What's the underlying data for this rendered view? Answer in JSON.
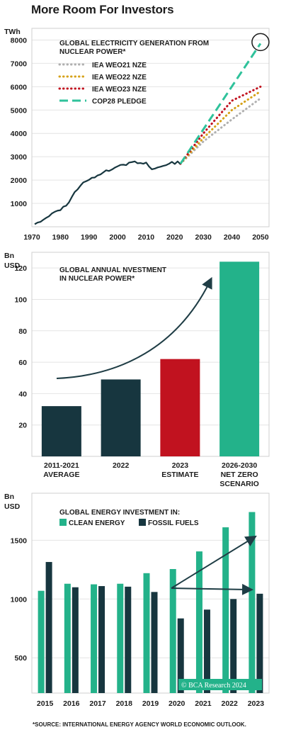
{
  "page_title": "More Room For Investors",
  "source_note": "*SOURCE: INTERNATIONAL ENERGY AGENCY WORLD ECONOMIC OUTLOOK.",
  "watermark": "© BCA Research 2024",
  "colors": {
    "navy": "#17363f",
    "red": "#c1121f",
    "teal": "#23b28a",
    "gray_dots": "#b0b0b0",
    "gold_dots": "#d6a21a",
    "red_dots": "#c1121f",
    "green_dash": "#2fc29b",
    "arrow": "#1f3d45"
  },
  "chart_data": [
    {
      "type": "line",
      "title": [
        "GLOBAL ELECTRICITY GENERATION FROM",
        "NUCLEAR POWER*"
      ],
      "unit_label": "TWh",
      "xlim": [
        1970,
        2053
      ],
      "ylim": [
        0,
        8500
      ],
      "xticks": [
        1970,
        1980,
        1990,
        2000,
        2010,
        2020,
        2030,
        2040,
        2050
      ],
      "yticks": [
        1000,
        2000,
        3000,
        4000,
        5000,
        6000,
        7000,
        8000
      ],
      "series": [
        {
          "name": "",
          "style": "solid",
          "color": "#17363f",
          "x": [
            1971,
            1972,
            1973,
            1974,
            1975,
            1976,
            1977,
            1978,
            1979,
            1980,
            1981,
            1982,
            1983,
            1984,
            1985,
            1986,
            1987,
            1988,
            1989,
            1990,
            1991,
            1992,
            1993,
            1994,
            1995,
            1996,
            1997,
            1998,
            1999,
            2000,
            2001,
            2002,
            2003,
            2004,
            2005,
            2006,
            2007,
            2008,
            2009,
            2010,
            2011,
            2012,
            2013,
            2014,
            2015,
            2016,
            2017,
            2018,
            2019,
            2020,
            2021,
            2022
          ],
          "y": [
            110,
            180,
            210,
            300,
            380,
            450,
            570,
            640,
            690,
            710,
            860,
            900,
            1050,
            1280,
            1490,
            1600,
            1760,
            1900,
            1950,
            2010,
            2100,
            2110,
            2200,
            2240,
            2330,
            2420,
            2390,
            2450,
            2530,
            2590,
            2650,
            2660,
            2640,
            2750,
            2770,
            2800,
            2720,
            2730,
            2700,
            2750,
            2580,
            2460,
            2490,
            2540,
            2570,
            2610,
            2640,
            2700,
            2780,
            2690,
            2800,
            2680
          ]
        },
        {
          "name": "IEA WEO21 NZE",
          "style": "dotted",
          "color": "#b0b0b0",
          "x": [
            2022,
            2030,
            2040,
            2050
          ],
          "y": [
            2700,
            3650,
            4600,
            5500
          ]
        },
        {
          "name": "IEA WEO22 NZE",
          "style": "dotted",
          "color": "#d6a21a",
          "x": [
            2022,
            2030,
            2040,
            2050
          ],
          "y": [
            2700,
            3800,
            5000,
            5800
          ]
        },
        {
          "name": "IEA WEO23 NZE",
          "style": "dotted",
          "color": "#c1121f",
          "x": [
            2022,
            2030,
            2040,
            2050
          ],
          "y": [
            2700,
            4000,
            5400,
            6000
          ]
        },
        {
          "name": "COP28 PLEDGE",
          "style": "dashed",
          "color": "#2fc29b",
          "x": [
            2022,
            2050
          ],
          "y": [
            2700,
            7850
          ]
        }
      ]
    },
    {
      "type": "bar",
      "title": [
        "GLOBAL ANNUAL NVESTMENT",
        "IN NUCLEAR POWER*"
      ],
      "unit_label": [
        "Bn",
        "USD"
      ],
      "ylim": [
        0,
        130
      ],
      "yticks": [
        20,
        40,
        60,
        80,
        100,
        120
      ],
      "categories": [
        [
          "2011-2021",
          "AVERAGE"
        ],
        [
          "2022"
        ],
        [
          "2023",
          "ESTIMATE"
        ],
        [
          "2026-2030",
          "NET ZERO",
          "SCENARIO"
        ]
      ],
      "values": [
        32,
        49,
        62,
        124
      ],
      "bar_colors": [
        "#17363f",
        "#17363f",
        "#c1121f",
        "#23b28a"
      ]
    },
    {
      "type": "bar",
      "title": "GLOBAL ENERGY INVESTMENT IN:",
      "unit_label": [
        "Bn",
        "USD"
      ],
      "ylim": [
        200,
        1900
      ],
      "yticks": [
        500,
        1000,
        1500
      ],
      "categories": [
        "2015",
        "2016",
        "2017",
        "2018",
        "2019",
        "2020",
        "2021",
        "2022",
        "2023"
      ],
      "series": [
        {
          "name": "CLEAN ENERGY",
          "color": "#23b28a",
          "values": [
            1070,
            1130,
            1125,
            1130,
            1220,
            1255,
            1405,
            1610,
            1740
          ]
        },
        {
          "name": "FOSSIL FUELS",
          "color": "#17363f",
          "values": [
            1315,
            1100,
            1110,
            1105,
            1060,
            835,
            910,
            1000,
            1045
          ]
        }
      ]
    }
  ]
}
